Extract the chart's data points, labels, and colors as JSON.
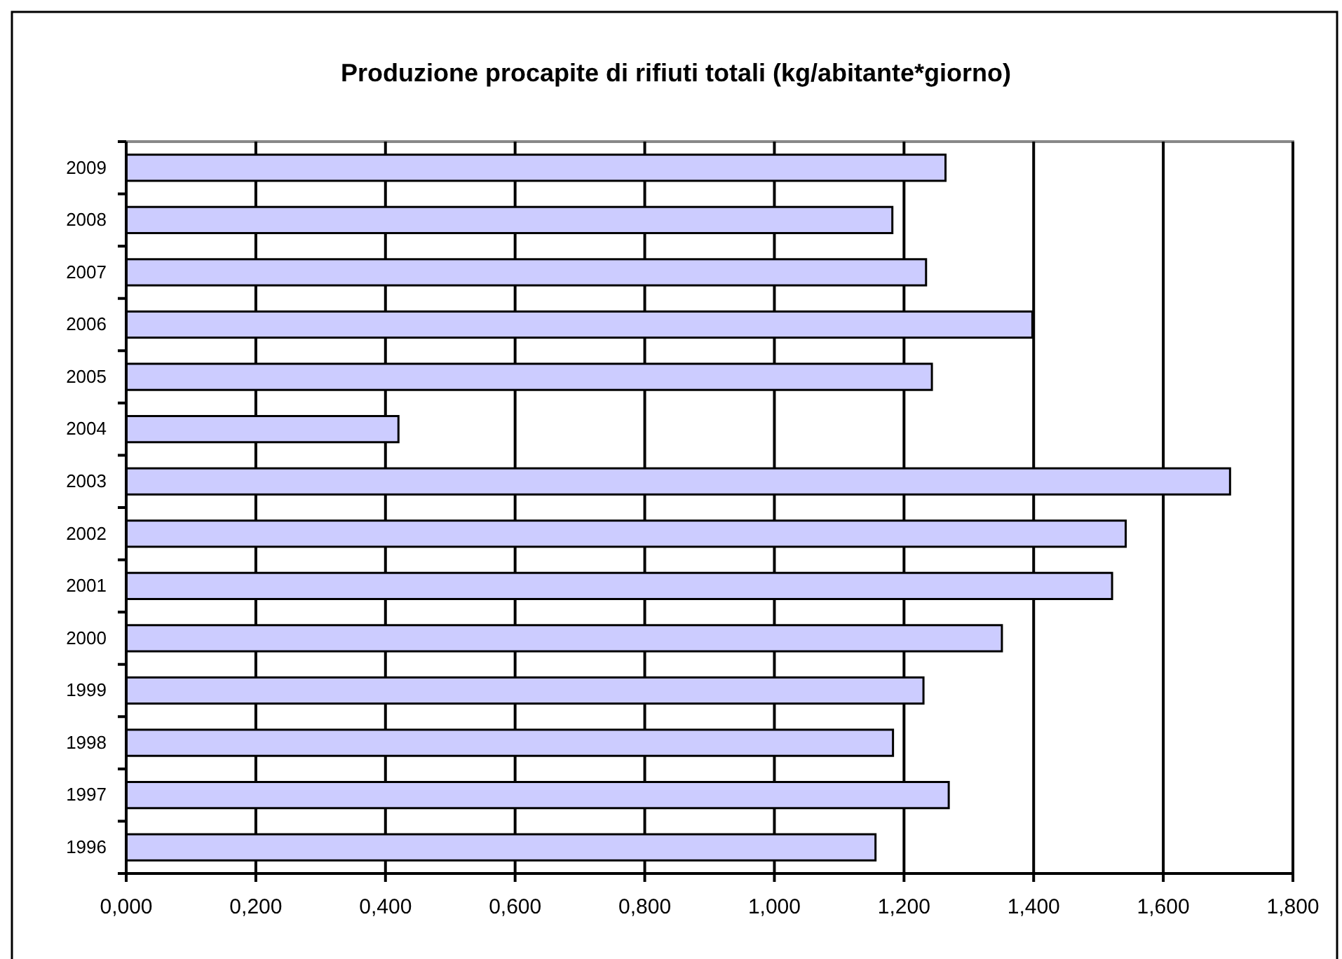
{
  "chart_data": {
    "type": "bar",
    "orientation": "horizontal",
    "title": "Produzione procapite di rifiuti totali (kg/abitante*giorno)",
    "categories": [
      "2009",
      "2008",
      "2007",
      "2006",
      "2005",
      "2004",
      "2003",
      "2002",
      "2001",
      "2000",
      "1999",
      "1998",
      "1997",
      "1996"
    ],
    "values": [
      1.264,
      1.182,
      1.234,
      1.398,
      1.243,
      0.42,
      1.703,
      1.542,
      1.521,
      1.351,
      1.23,
      1.183,
      1.269,
      1.156
    ],
    "color": "#ccccff",
    "xlim": [
      0,
      1.8
    ],
    "xticks": [
      {
        "value": 0,
        "label": "0,000"
      },
      {
        "value": 0.2,
        "label": "0,200"
      },
      {
        "value": 0.4,
        "label": "0,400"
      },
      {
        "value": 0.6,
        "label": "0,600"
      },
      {
        "value": 0.8,
        "label": "0,800"
      },
      {
        "value": 1,
        "label": "1,000"
      },
      {
        "value": 1.2,
        "label": "1,200"
      },
      {
        "value": 1.4,
        "label": "1,400"
      },
      {
        "value": 1.6,
        "label": "1,600"
      },
      {
        "value": 1.8,
        "label": "1,800"
      }
    ],
    "grid": "x"
  }
}
